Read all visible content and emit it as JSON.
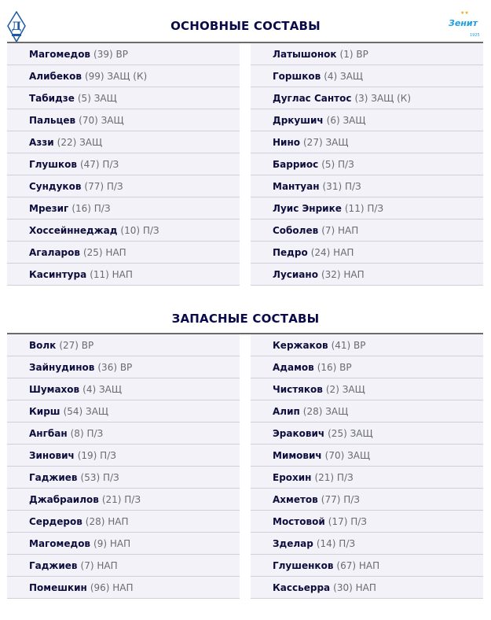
{
  "colors": {
    "title": "#0a0a4a",
    "row_bg": "#f2f2f8",
    "dinamo": "#1a5aa8",
    "zenit": "#1ea0e0",
    "star": "#e0b020"
  },
  "logos": {
    "home": "Д",
    "away": "Зенит",
    "away_year": "1925"
  },
  "starting": {
    "title": "ОСНОВНЫЕ СОСТАВЫ",
    "home": [
      {
        "name": "Магомедов",
        "info": "(39) ВР"
      },
      {
        "name": "Алибеков",
        "info": "(99) ЗАЩ (К)"
      },
      {
        "name": "Табидзе",
        "info": "(5) ЗАЩ"
      },
      {
        "name": "Пальцев",
        "info": "(70) ЗАЩ"
      },
      {
        "name": "Аззи",
        "info": "(22) ЗАЩ"
      },
      {
        "name": "Глушков",
        "info": "(47) П/З"
      },
      {
        "name": "Сундуков",
        "info": "(77) П/З"
      },
      {
        "name": "Мрезиг",
        "info": "(16) П/З"
      },
      {
        "name": "Хоссейннеджад",
        "info": "(10) П/З"
      },
      {
        "name": "Агаларов",
        "info": "(25) НАП"
      },
      {
        "name": "Касинтура",
        "info": "(11) НАП"
      }
    ],
    "away": [
      {
        "name": "Латышонок",
        "info": "(1) ВР"
      },
      {
        "name": "Горшков",
        "info": "(4) ЗАЩ"
      },
      {
        "name": "Дуглас Сантос",
        "info": "(3) ЗАЩ (К)"
      },
      {
        "name": "Дркушич",
        "info": "(6) ЗАЩ"
      },
      {
        "name": "Нино",
        "info": "(27) ЗАЩ"
      },
      {
        "name": "Барриос",
        "info": "(5) П/З"
      },
      {
        "name": "Мантуан",
        "info": "(31) П/З"
      },
      {
        "name": "Луис Энрике",
        "info": "(11) П/З"
      },
      {
        "name": "Соболев",
        "info": "(7) НАП"
      },
      {
        "name": "Педро",
        "info": "(24) НАП"
      },
      {
        "name": "Лусиано",
        "info": "(32) НАП"
      }
    ]
  },
  "subs": {
    "title": "ЗАПАСНЫЕ СОСТАВЫ",
    "home": [
      {
        "name": "Волк",
        "info": "(27) ВР"
      },
      {
        "name": "Зайнудинов",
        "info": "(36) ВР"
      },
      {
        "name": "Шумахов",
        "info": "(4) ЗАЩ"
      },
      {
        "name": "Кирш",
        "info": "(54) ЗАЩ"
      },
      {
        "name": "Ангбан",
        "info": "(8) П/З"
      },
      {
        "name": "Зинович",
        "info": "(19) П/З"
      },
      {
        "name": "Гаджиев",
        "info": "(53) П/З"
      },
      {
        "name": "Джабраилов",
        "info": "(21) П/З"
      },
      {
        "name": "Сердеров",
        "info": "(28) НАП"
      },
      {
        "name": "Магомедов",
        "info": "(9) НАП"
      },
      {
        "name": "Гаджиев",
        "info": "(7) НАП"
      },
      {
        "name": "Помешкин",
        "info": "(96) НАП"
      }
    ],
    "away": [
      {
        "name": "Кержаков",
        "info": "(41) ВР"
      },
      {
        "name": "Адамов",
        "info": "(16) ВР"
      },
      {
        "name": "Чистяков",
        "info": "(2) ЗАЩ"
      },
      {
        "name": "Алип",
        "info": "(28) ЗАЩ"
      },
      {
        "name": "Эракович",
        "info": "(25) ЗАЩ"
      },
      {
        "name": "Мимович",
        "info": "(70) ЗАЩ"
      },
      {
        "name": "Ерохин",
        "info": "(21) П/З"
      },
      {
        "name": "Ахметов",
        "info": "(77) П/З"
      },
      {
        "name": "Мостовой",
        "info": "(17) П/З"
      },
      {
        "name": "Зделар",
        "info": "(14) П/З"
      },
      {
        "name": "Глушенков",
        "info": "(67) НАП"
      },
      {
        "name": "Кассьерра",
        "info": "(30) НАП"
      }
    ]
  }
}
